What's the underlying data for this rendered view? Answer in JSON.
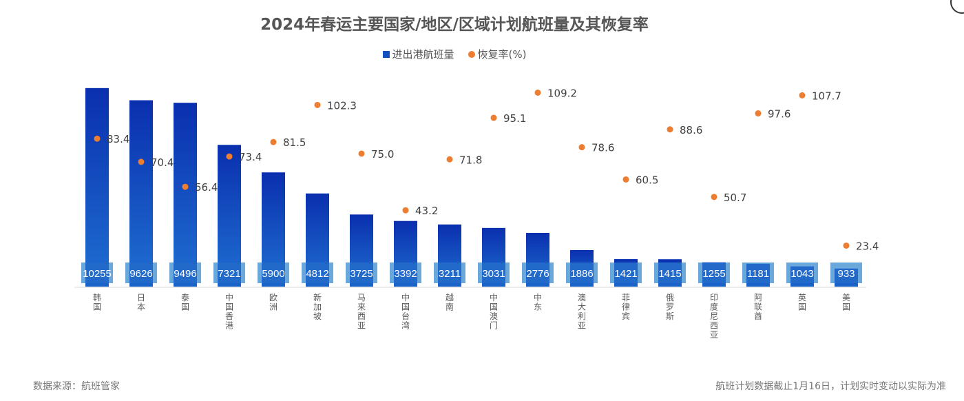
{
  "chart_data": {
    "type": "bar+scatter",
    "title": "2024年春运主要国家/地区/区域计划航班量及其恢复率",
    "categories": [
      "韩国",
      "日本",
      "泰国",
      "中国香港",
      "欧洲",
      "新加坡",
      "马来西亚",
      "中国台湾",
      "越南",
      "中国澳门",
      "中东",
      "澳大利亚",
      "菲律宾",
      "俄罗斯",
      "印度尼西亚",
      "阿联酋",
      "英国",
      "美国"
    ],
    "series": [
      {
        "name": "进出港航班量",
        "type": "bar",
        "color": "#1550c0",
        "values": [
          10255,
          9626,
          9496,
          7321,
          5900,
          4812,
          3725,
          3392,
          3211,
          3031,
          2776,
          1886,
          1421,
          1415,
          1255,
          1181,
          1043,
          933
        ]
      },
      {
        "name": "恢复率(%)",
        "type": "scatter",
        "color": "#ed7d31",
        "values": [
          83.4,
          70.4,
          56.4,
          73.4,
          81.5,
          102.3,
          75.0,
          43.2,
          71.8,
          95.1,
          109.2,
          78.6,
          60.5,
          88.6,
          50.7,
          97.6,
          107.7,
          23.4
        ]
      }
    ],
    "legend_position": "top",
    "grid": false
  },
  "footer": {
    "source": "数据来源：航班管家",
    "note": "航班计划数据截止1月16日，计划实时变动以实际为准"
  }
}
